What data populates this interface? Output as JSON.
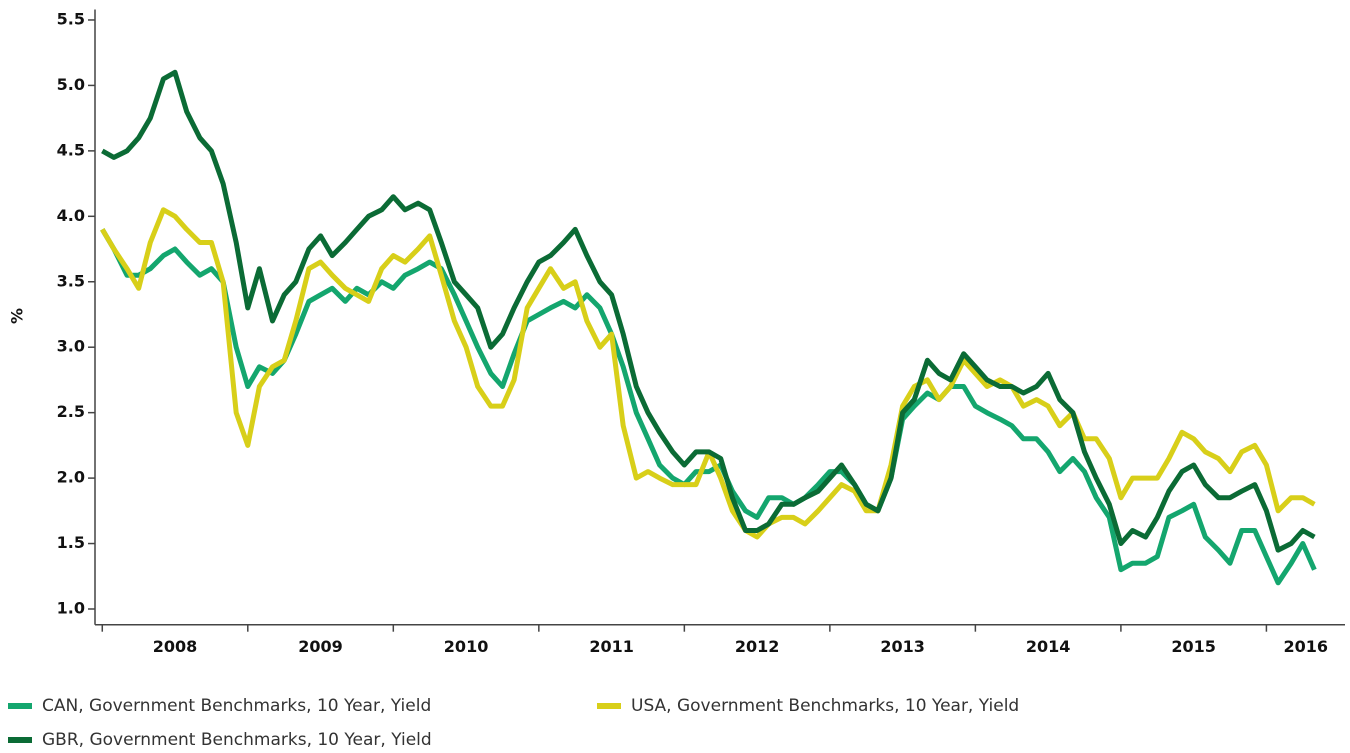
{
  "chart_data": {
    "type": "line",
    "y_label": "%",
    "x": [
      2008,
      2008.08,
      2008.17,
      2008.25,
      2008.33,
      2008.42,
      2008.5,
      2008.58,
      2008.67,
      2008.75,
      2008.83,
      2008.92,
      2009,
      2009.08,
      2009.17,
      2009.25,
      2009.33,
      2009.42,
      2009.5,
      2009.58,
      2009.67,
      2009.75,
      2009.83,
      2009.92,
      2010,
      2010.08,
      2010.17,
      2010.25,
      2010.33,
      2010.42,
      2010.5,
      2010.58,
      2010.67,
      2010.75,
      2010.83,
      2010.92,
      2011,
      2011.08,
      2011.17,
      2011.25,
      2011.33,
      2011.42,
      2011.5,
      2011.58,
      2011.67,
      2011.75,
      2011.83,
      2011.92,
      2012,
      2012.08,
      2012.17,
      2012.25,
      2012.33,
      2012.42,
      2012.5,
      2012.58,
      2012.67,
      2012.75,
      2012.83,
      2012.92,
      2013,
      2013.08,
      2013.17,
      2013.25,
      2013.33,
      2013.42,
      2013.5,
      2013.58,
      2013.67,
      2013.75,
      2013.83,
      2013.92,
      2014,
      2014.08,
      2014.17,
      2014.25,
      2014.33,
      2014.42,
      2014.5,
      2014.58,
      2014.67,
      2014.75,
      2014.83,
      2014.92,
      2015,
      2015.08,
      2015.17,
      2015.25,
      2015.33,
      2015.42,
      2015.5,
      2015.58,
      2015.67,
      2015.75,
      2015.83,
      2015.92,
      2016,
      2016.08,
      2016.17,
      2016.25,
      2016.33
    ],
    "series": [
      {
        "name": "CAN, Government Benchmarks, 10 Year, Yield",
        "color": "#14a66e",
        "values": [
          3.9,
          3.75,
          3.55,
          3.55,
          3.6,
          3.7,
          3.75,
          3.65,
          3.55,
          3.6,
          3.5,
          3.0,
          2.7,
          2.85,
          2.8,
          2.9,
          3.1,
          3.35,
          3.4,
          3.45,
          3.35,
          3.45,
          3.4,
          3.5,
          3.45,
          3.55,
          3.6,
          3.65,
          3.6,
          3.4,
          3.2,
          3.0,
          2.8,
          2.7,
          2.95,
          3.2,
          3.25,
          3.3,
          3.35,
          3.3,
          3.4,
          3.3,
          3.1,
          2.85,
          2.5,
          2.3,
          2.1,
          2.0,
          1.95,
          2.05,
          2.05,
          2.1,
          1.9,
          1.75,
          1.7,
          1.85,
          1.85,
          1.8,
          1.85,
          1.95,
          2.05,
          2.05,
          1.95,
          1.8,
          1.75,
          2.0,
          2.45,
          2.55,
          2.65,
          2.6,
          2.7,
          2.7,
          2.55,
          2.5,
          2.45,
          2.4,
          2.3,
          2.3,
          2.2,
          2.05,
          2.15,
          2.05,
          1.85,
          1.7,
          1.3,
          1.35,
          1.35,
          1.4,
          1.7,
          1.75,
          1.8,
          1.55,
          1.45,
          1.35,
          1.6,
          1.6,
          1.4,
          1.2,
          1.35,
          1.5,
          1.3
        ]
      },
      {
        "name": "USA, Government Benchmarks, 10 Year, Yield",
        "color": "#d8cf19",
        "values": [
          3.9,
          3.75,
          3.6,
          3.45,
          3.8,
          4.05,
          4.0,
          3.9,
          3.8,
          3.8,
          3.5,
          2.5,
          2.25,
          2.7,
          2.85,
          2.9,
          3.2,
          3.6,
          3.65,
          3.55,
          3.45,
          3.4,
          3.35,
          3.6,
          3.7,
          3.65,
          3.75,
          3.85,
          3.55,
          3.2,
          3.0,
          2.7,
          2.55,
          2.55,
          2.75,
          3.3,
          3.45,
          3.6,
          3.45,
          3.5,
          3.2,
          3.0,
          3.1,
          2.4,
          2.0,
          2.05,
          2.0,
          1.95,
          1.95,
          1.95,
          2.2,
          2.0,
          1.75,
          1.6,
          1.55,
          1.65,
          1.7,
          1.7,
          1.65,
          1.75,
          1.85,
          1.95,
          1.9,
          1.75,
          1.75,
          2.1,
          2.55,
          2.7,
          2.75,
          2.6,
          2.7,
          2.9,
          2.8,
          2.7,
          2.75,
          2.7,
          2.55,
          2.6,
          2.55,
          2.4,
          2.5,
          2.3,
          2.3,
          2.15,
          1.85,
          2.0,
          2.0,
          2.0,
          2.15,
          2.35,
          2.3,
          2.2,
          2.15,
          2.05,
          2.2,
          2.25,
          2.1,
          1.75,
          1.85,
          1.85,
          1.8
        ]
      },
      {
        "name": "GBR, Government Benchmarks, 10 Year, Yield",
        "color": "#0b6b35",
        "values": [
          4.5,
          4.45,
          4.5,
          4.6,
          4.75,
          5.05,
          5.1,
          4.8,
          4.6,
          4.5,
          4.25,
          3.8,
          3.3,
          3.6,
          3.2,
          3.4,
          3.5,
          3.75,
          3.85,
          3.7,
          3.8,
          3.9,
          4.0,
          4.05,
          4.15,
          4.05,
          4.1,
          4.05,
          3.8,
          3.5,
          3.4,
          3.3,
          3.0,
          3.1,
          3.3,
          3.5,
          3.65,
          3.7,
          3.8,
          3.9,
          3.7,
          3.5,
          3.4,
          3.1,
          2.7,
          2.5,
          2.35,
          2.2,
          2.1,
          2.2,
          2.2,
          2.15,
          1.85,
          1.6,
          1.6,
          1.65,
          1.8,
          1.8,
          1.85,
          1.9,
          2.0,
          2.1,
          1.95,
          1.8,
          1.75,
          2.0,
          2.5,
          2.6,
          2.9,
          2.8,
          2.75,
          2.95,
          2.85,
          2.75,
          2.7,
          2.7,
          2.65,
          2.7,
          2.8,
          2.6,
          2.5,
          2.2,
          2.0,
          1.8,
          1.5,
          1.6,
          1.55,
          1.7,
          1.9,
          2.05,
          2.1,
          1.95,
          1.85,
          1.85,
          1.9,
          1.95,
          1.75,
          1.45,
          1.5,
          1.6,
          1.55
        ]
      }
    ],
    "xlim": [
      2007.95,
      2016.54
    ],
    "xticks": [
      2008,
      2009,
      2010,
      2011,
      2012,
      2013,
      2014,
      2015,
      2016
    ],
    "ylim": [
      0.88,
      5.58
    ],
    "yticks": [
      {
        "value": 1,
        "label": "1.0"
      },
      1.5,
      {
        "value": 2,
        "label": "2.0"
      },
      2.5,
      {
        "value": 3,
        "label": "3.0"
      },
      3.5,
      {
        "value": 4,
        "label": "4.0"
      },
      4.5,
      {
        "value": 5,
        "label": "5.0"
      },
      5.5
    ],
    "legend": "bottom"
  }
}
